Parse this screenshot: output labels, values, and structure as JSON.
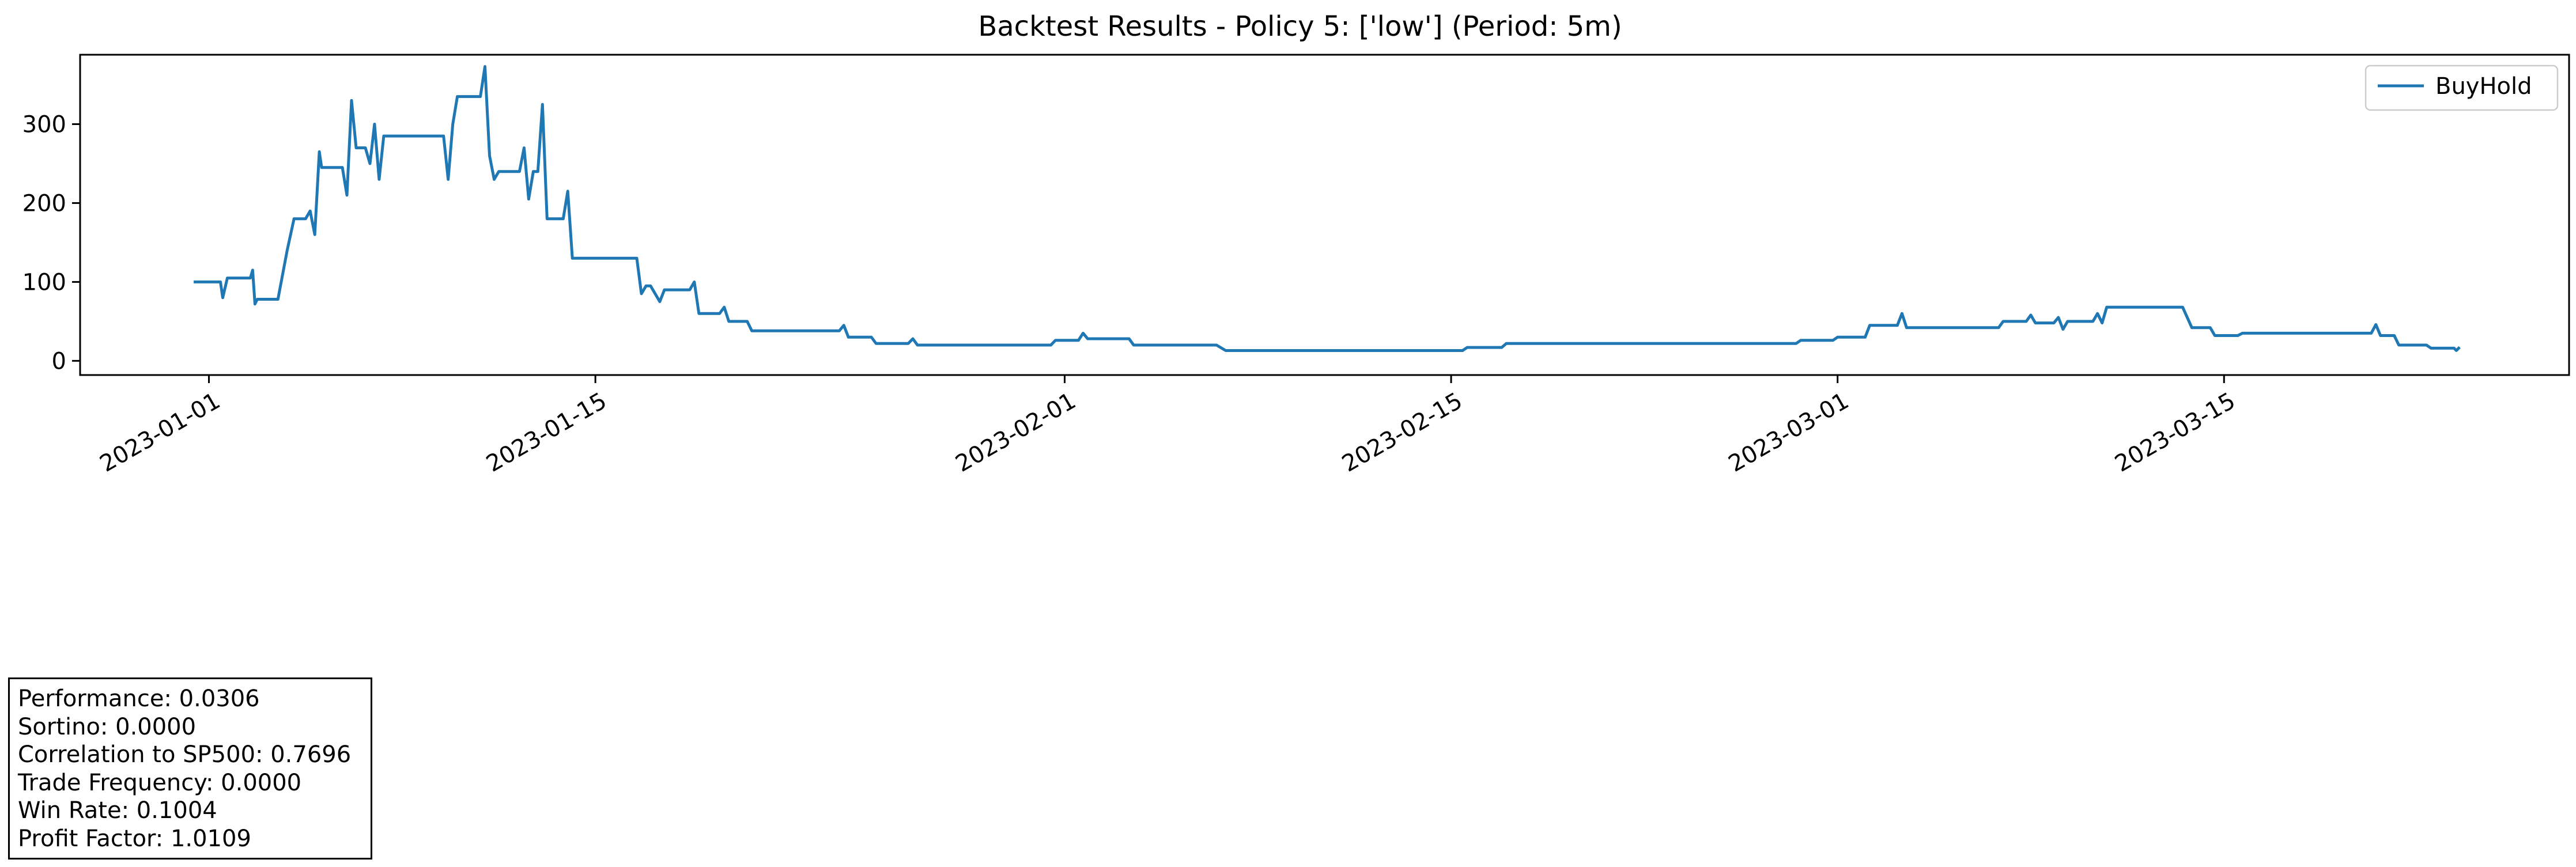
{
  "chart_data": {
    "type": "line",
    "title": "Backtest Results - Policy 5: ['low'] (Period: 5m)",
    "xlabel": "",
    "ylabel": "",
    "x_range": [
      "2022-12-27T08:00",
      "2023-03-27T12:00"
    ],
    "ylim": [
      -18,
      388
    ],
    "x_ticks": [
      "2023-01-01",
      "2023-01-15",
      "2023-02-01",
      "2023-02-15",
      "2023-03-01",
      "2023-03-15"
    ],
    "y_ticks": [
      0,
      100,
      200,
      300
    ],
    "grid": false,
    "legend": {
      "placement": "top-right",
      "entries": [
        "BuyHold"
      ]
    },
    "series": [
      {
        "name": "BuyHold",
        "color": "#1f77b4",
        "points": [
          [
            "2022-12-31T12:00",
            100
          ],
          [
            "2023-01-01T10:00",
            100
          ],
          [
            "2023-01-01T12:00",
            80
          ],
          [
            "2023-01-01T16:00",
            105
          ],
          [
            "2023-01-02T12:00",
            105
          ],
          [
            "2023-01-02T14:00",
            115
          ],
          [
            "2023-01-02T16:00",
            72
          ],
          [
            "2023-01-02T18:00",
            78
          ],
          [
            "2023-01-03T12:00",
            78
          ],
          [
            "2023-01-03T20:00",
            140
          ],
          [
            "2023-01-04T02:00",
            180
          ],
          [
            "2023-01-04T12:00",
            180
          ],
          [
            "2023-01-04T16:00",
            190
          ],
          [
            "2023-01-04T20:00",
            160
          ],
          [
            "2023-01-05T00:00",
            265
          ],
          [
            "2023-01-05T02:00",
            245
          ],
          [
            "2023-01-05T20:00",
            245
          ],
          [
            "2023-01-06T00:00",
            210
          ],
          [
            "2023-01-06T04:00",
            330
          ],
          [
            "2023-01-06T08:00",
            270
          ],
          [
            "2023-01-06T16:00",
            270
          ],
          [
            "2023-01-06T20:00",
            250
          ],
          [
            "2023-01-07T00:00",
            300
          ],
          [
            "2023-01-07T04:00",
            230
          ],
          [
            "2023-01-07T08:00",
            285
          ],
          [
            "2023-01-09T12:00",
            285
          ],
          [
            "2023-01-09T16:00",
            230
          ],
          [
            "2023-01-09T20:00",
            300
          ],
          [
            "2023-01-10T00:00",
            335
          ],
          [
            "2023-01-10T20:00",
            335
          ],
          [
            "2023-01-11T00:00",
            373
          ],
          [
            "2023-01-11T04:00",
            260
          ],
          [
            "2023-01-11T08:00",
            230
          ],
          [
            "2023-01-11T12:00",
            240
          ],
          [
            "2023-01-12T06:00",
            240
          ],
          [
            "2023-01-12T10:00",
            270
          ],
          [
            "2023-01-12T14:00",
            205
          ],
          [
            "2023-01-12T18:00",
            240
          ],
          [
            "2023-01-12T22:00",
            240
          ],
          [
            "2023-01-13T02:00",
            325
          ],
          [
            "2023-01-13T06:00",
            180
          ],
          [
            "2023-01-13T20:00",
            180
          ],
          [
            "2023-01-14T00:00",
            215
          ],
          [
            "2023-01-14T04:00",
            130
          ],
          [
            "2023-01-16T12:00",
            130
          ],
          [
            "2023-01-16T16:00",
            85
          ],
          [
            "2023-01-16T20:00",
            95
          ],
          [
            "2023-01-17T00:00",
            95
          ],
          [
            "2023-01-17T08:00",
            75
          ],
          [
            "2023-01-17T12:00",
            90
          ],
          [
            "2023-01-18T10:00",
            90
          ],
          [
            "2023-01-18T14:00",
            100
          ],
          [
            "2023-01-18T18:00",
            60
          ],
          [
            "2023-01-19T12:00",
            60
          ],
          [
            "2023-01-19T16:00",
            68
          ],
          [
            "2023-01-19T20:00",
            50
          ],
          [
            "2023-01-20T12:00",
            50
          ],
          [
            "2023-01-20T16:00",
            38
          ],
          [
            "2023-01-23T20:00",
            38
          ],
          [
            "2023-01-24T00:00",
            45
          ],
          [
            "2023-01-24T04:00",
            30
          ],
          [
            "2023-01-25T00:00",
            30
          ],
          [
            "2023-01-25T04:00",
            22
          ],
          [
            "2023-01-26T08:00",
            22
          ],
          [
            "2023-01-26T12:00",
            28
          ],
          [
            "2023-01-26T16:00",
            20
          ],
          [
            "2023-01-31T12:00",
            20
          ],
          [
            "2023-01-31T16:00",
            26
          ],
          [
            "2023-02-01T12:00",
            26
          ],
          [
            "2023-02-01T16:00",
            35
          ],
          [
            "2023-02-01T20:00",
            28
          ],
          [
            "2023-02-03T08:00",
            28
          ],
          [
            "2023-02-03T12:00",
            20
          ],
          [
            "2023-02-06T12:00",
            20
          ],
          [
            "2023-02-06T20:00",
            13
          ],
          [
            "2023-02-15T10:00",
            13
          ],
          [
            "2023-02-15T14:00",
            17
          ],
          [
            "2023-02-16T20:00",
            17
          ],
          [
            "2023-02-17T00:00",
            22
          ],
          [
            "2023-02-27T12:00",
            22
          ],
          [
            "2023-02-27T16:00",
            26
          ],
          [
            "2023-02-28T20:00",
            26
          ],
          [
            "2023-03-01T00:00",
            30
          ],
          [
            "2023-03-02T00:00",
            30
          ],
          [
            "2023-03-02T04:00",
            45
          ],
          [
            "2023-03-03T04:00",
            45
          ],
          [
            "2023-03-03T08:00",
            60
          ],
          [
            "2023-03-03T12:00",
            42
          ],
          [
            "2023-03-06T20:00",
            42
          ],
          [
            "2023-03-07T00:00",
            50
          ],
          [
            "2023-03-07T20:00",
            50
          ],
          [
            "2023-03-08T00:00",
            58
          ],
          [
            "2023-03-08T04:00",
            48
          ],
          [
            "2023-03-08T20:00",
            48
          ],
          [
            "2023-03-09T00:00",
            55
          ],
          [
            "2023-03-09T04:00",
            40
          ],
          [
            "2023-03-09T08:00",
            50
          ],
          [
            "2023-03-10T06:00",
            50
          ],
          [
            "2023-03-10T10:00",
            60
          ],
          [
            "2023-03-10T14:00",
            48
          ],
          [
            "2023-03-10T18:00",
            68
          ],
          [
            "2023-03-13T12:00",
            68
          ],
          [
            "2023-03-13T16:00",
            55
          ],
          [
            "2023-03-13T20:00",
            42
          ],
          [
            "2023-03-14T12:00",
            42
          ],
          [
            "2023-03-14T16:00",
            32
          ],
          [
            "2023-03-15T12:00",
            32
          ],
          [
            "2023-03-15T16:00",
            35
          ],
          [
            "2023-03-20T08:00",
            35
          ],
          [
            "2023-03-20T12:00",
            46
          ],
          [
            "2023-03-20T16:00",
            32
          ],
          [
            "2023-03-21T04:00",
            32
          ],
          [
            "2023-03-21T08:00",
            20
          ],
          [
            "2023-03-22T08:00",
            20
          ],
          [
            "2023-03-22T12:00",
            16
          ],
          [
            "2023-03-23T08:00",
            16
          ],
          [
            "2023-03-23T10:00",
            13
          ],
          [
            "2023-03-23T12:00",
            16
          ]
        ]
      }
    ]
  },
  "stats": [
    "Performance: 0.0306",
    "Sortino: 0.0000",
    "Correlation to SP500: 0.7696",
    "Trade Frequency: 0.0000",
    "Win Rate: 0.1004",
    "Profit Factor: 1.0109"
  ]
}
